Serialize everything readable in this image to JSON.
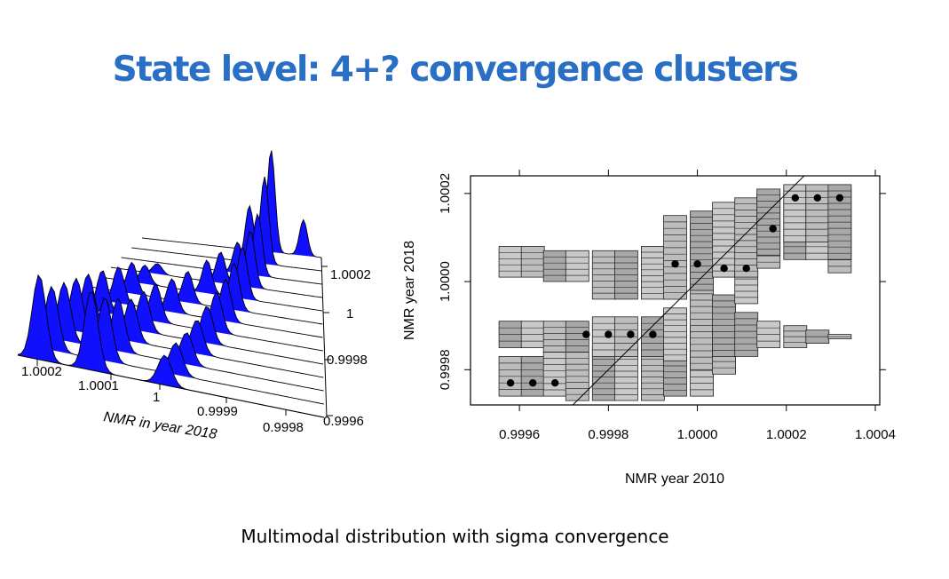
{
  "slide": {
    "title": "State level: 4+? convergence clusters",
    "caption": "Multimodal distribution with sigma convergence"
  },
  "chart_data": [
    {
      "type": "area",
      "subtype": "3d-ridgeline-density",
      "title": "",
      "xlabel": "NMR in year 2018",
      "x_tick_labels": [
        "1.0002",
        "1.0001",
        "1",
        "0.9999",
        "0.9998"
      ],
      "depth_tick_labels": [
        "1.0002",
        "1",
        "0.9998",
        "0.9996"
      ],
      "fill_color": "#1010ff",
      "ridges": [
        {
          "peaks": [
            [
              0.72,
              1.0
            ],
            [
              0.9,
              0.35
            ]
          ]
        },
        {
          "peaks": [
            [
              0.7,
              0.85
            ],
            [
              0.62,
              0.55
            ]
          ]
        },
        {
          "peaks": [
            [
              0.68,
              0.6
            ],
            [
              0.58,
              0.3
            ]
          ]
        },
        {
          "peaks": [
            [
              0.66,
              0.55
            ],
            [
              0.52,
              0.3
            ],
            [
              0.22,
              0.1
            ]
          ]
        },
        {
          "peaks": [
            [
              0.64,
              0.5
            ],
            [
              0.48,
              0.32
            ],
            [
              0.2,
              0.18
            ]
          ]
        },
        {
          "peaks": [
            [
              0.62,
              0.45
            ],
            [
              0.42,
              0.3
            ],
            [
              0.18,
              0.3
            ]
          ]
        },
        {
          "peaks": [
            [
              0.6,
              0.4
            ],
            [
              0.38,
              0.32
            ],
            [
              0.16,
              0.35
            ]
          ]
        },
        {
          "peaks": [
            [
              0.58,
              0.38
            ],
            [
              0.34,
              0.36
            ],
            [
              0.13,
              0.4
            ]
          ]
        },
        {
          "peaks": [
            [
              0.56,
              0.35
            ],
            [
              0.32,
              0.38
            ],
            [
              0.11,
              0.45
            ]
          ]
        },
        {
          "peaks": [
            [
              0.54,
              0.32
            ],
            [
              0.3,
              0.4
            ],
            [
              0.1,
              0.5
            ]
          ]
        },
        {
          "peaks": [
            [
              0.52,
              0.3
            ],
            [
              0.28,
              0.5
            ],
            [
              0.09,
              0.55
            ]
          ]
        },
        {
          "peaks": [
            [
              0.5,
              0.3
            ],
            [
              0.26,
              0.6
            ],
            [
              0.08,
              0.6
            ]
          ]
        },
        {
          "peaks": [
            [
              0.48,
              0.28
            ],
            [
              0.24,
              0.75
            ],
            [
              0.07,
              0.8
            ]
          ]
        }
      ]
    },
    {
      "type": "scatter",
      "subtype": "stacked-density-boxes",
      "title": "",
      "xlabel": "NMR year 2010",
      "ylabel": "NMR year 2018",
      "xlim": [
        0.99949,
        1.00041
      ],
      "ylim": [
        0.99972,
        1.00024
      ],
      "x_ticks": [
        0.9996,
        0.9998,
        1.0,
        1.0002,
        1.0004
      ],
      "x_tick_labels": [
        "0.9996",
        "0.9998",
        "1.0000",
        "1.0002",
        "1.0004"
      ],
      "y_ticks": [
        0.9998,
        1.0,
        1.0002
      ],
      "y_tick_labels": [
        "0.9998",
        "1.0000",
        "1.0002"
      ],
      "diagonal": true,
      "points": [
        {
          "x": 0.99958,
          "y": 0.99977
        },
        {
          "x": 0.99963,
          "y": 0.99977
        },
        {
          "x": 0.99968,
          "y": 0.99977
        },
        {
          "x": 0.99975,
          "y": 0.99988
        },
        {
          "x": 0.9998,
          "y": 0.99988
        },
        {
          "x": 0.99985,
          "y": 0.99988
        },
        {
          "x": 0.9999,
          "y": 0.99988
        },
        {
          "x": 0.99995,
          "y": 1.00004
        },
        {
          "x": 1.0,
          "y": 1.00004
        },
        {
          "x": 1.00006,
          "y": 1.00003
        },
        {
          "x": 1.00011,
          "y": 1.00003
        },
        {
          "x": 1.00017,
          "y": 1.00012
        },
        {
          "x": 1.00022,
          "y": 1.00019
        },
        {
          "x": 1.00027,
          "y": 1.00019
        },
        {
          "x": 1.00032,
          "y": 1.00019
        }
      ],
      "box_columns": [
        {
          "x": 0.99958,
          "ranges": [
            [
              0.99974,
              0.99983
            ],
            [
              0.99985,
              0.99991
            ],
            [
              1.00001,
              1.00008
            ]
          ]
        },
        {
          "x": 0.99963,
          "ranges": [
            [
              0.99974,
              0.99983
            ],
            [
              0.99985,
              0.99991
            ],
            [
              1.00001,
              1.00008
            ]
          ]
        },
        {
          "x": 0.99968,
          "ranges": [
            [
              0.99974,
              0.99984
            ],
            [
              0.99984,
              0.99991
            ],
            [
              1.0,
              1.00007
            ]
          ]
        },
        {
          "x": 0.99973,
          "ranges": [
            [
              0.99973,
              0.99984
            ],
            [
              0.99984,
              0.99991
            ],
            [
              1.0,
              1.00007
            ]
          ]
        },
        {
          "x": 0.99979,
          "ranges": [
            [
              0.99973,
              0.99985
            ],
            [
              0.99983,
              0.99992
            ],
            [
              0.99996,
              1.00007
            ]
          ]
        },
        {
          "x": 0.99984,
          "ranges": [
            [
              0.99973,
              0.99985
            ],
            [
              0.99983,
              0.99992
            ],
            [
              0.99996,
              1.00007
            ]
          ]
        },
        {
          "x": 0.9999,
          "ranges": [
            [
              0.99973,
              0.99985
            ],
            [
              0.99983,
              0.99992
            ],
            [
              0.99996,
              1.00008
            ]
          ]
        },
        {
          "x": 0.99995,
          "ranges": [
            [
              0.99974,
              0.99985
            ],
            [
              0.99982,
              0.99994
            ],
            [
              0.99996,
              1.00015
            ]
          ]
        },
        {
          "x": 1.00001,
          "ranges": [
            [
              0.99974,
              0.9999
            ],
            [
              0.9998,
              1.00013
            ],
            [
              0.99998,
              1.00016
            ]
          ]
        },
        {
          "x": 1.00006,
          "ranges": [
            [
              0.99979,
              0.99989
            ],
            [
              0.99983,
              0.99997
            ],
            [
              1.00001,
              1.00018
            ]
          ]
        },
        {
          "x": 1.00011,
          "ranges": [
            [
              0.99983,
              0.99993
            ],
            [
              0.99995,
              1.00002
            ],
            [
              1.00001,
              1.00019
            ]
          ]
        },
        {
          "x": 1.00016,
          "ranges": [
            [
              0.99985,
              0.99991
            ],
            [
              1.00003,
              1.0002
            ],
            [
              1.00006,
              1.00021
            ]
          ]
        },
        {
          "x": 1.00022,
          "ranges": [
            [
              0.99985,
              0.9999
            ],
            [
              1.00005,
              1.00021
            ],
            [
              1.00009,
              1.00022
            ]
          ]
        },
        {
          "x": 1.00027,
          "ranges": [
            [
              0.99986,
              0.99989
            ],
            [
              1.00005,
              1.00021
            ],
            [
              1.00009,
              1.00022
            ]
          ]
        },
        {
          "x": 1.00032,
          "ranges": [
            [
              0.99987,
              0.99988
            ],
            [
              1.00002,
              1.00021
            ],
            [
              1.00005,
              1.00022
            ]
          ]
        }
      ]
    }
  ]
}
